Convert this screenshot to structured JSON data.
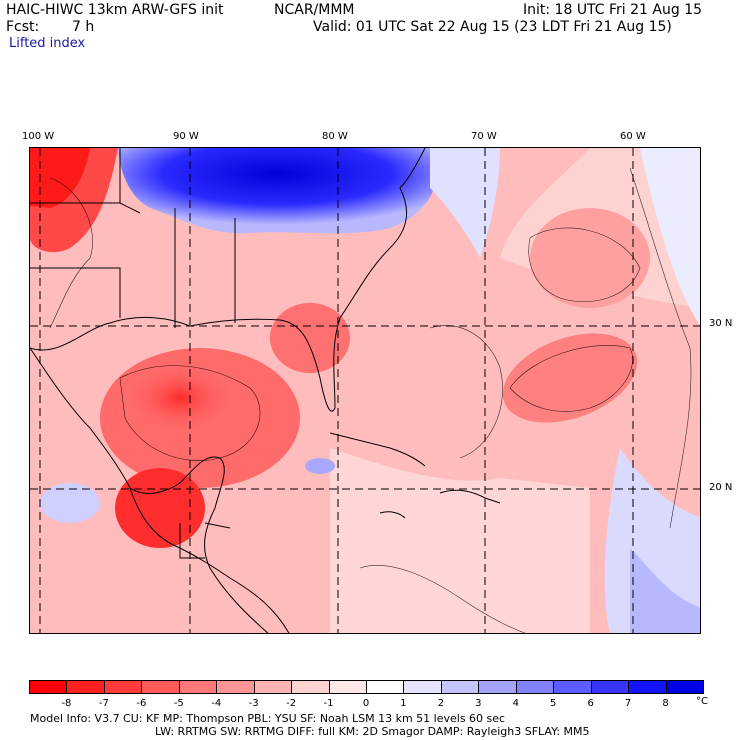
{
  "header": {
    "model_title": "HAIC-HIWC 13km ARW-GFS init",
    "org": "NCAR/MMM",
    "init": "Init: 18 UTC Fri 21 Aug 15",
    "fcst_label": "Fcst:",
    "fcst_value": "7 h",
    "valid": "Valid: 01 UTC Sat 22 Aug 15 (23 LDT Fri 21 Aug 15)",
    "field": "Lifted index"
  },
  "axes": {
    "lon_labels": [
      "100 W",
      "90 W",
      "80 W",
      "70 W",
      "60 W"
    ],
    "lat_labels": [
      "30 N",
      "20 N"
    ]
  },
  "colorbar": {
    "labels": [
      "-8",
      "-7",
      "-6",
      "-5",
      "-4",
      "-3",
      "-2",
      "-1",
      "0",
      "1",
      "2",
      "3",
      "4",
      "5",
      "6",
      "7",
      "8"
    ],
    "unit": "°C",
    "colors": [
      "#ff0000",
      "#ff2020",
      "#ff3c3c",
      "#ff5a5a",
      "#ff7878",
      "#ff9696",
      "#ffb4b4",
      "#ffd2d2",
      "#ffe8e8",
      "#ffffff",
      "#e4e4ff",
      "#c4c4ff",
      "#a4a4ff",
      "#8282ff",
      "#5c5cff",
      "#3636ff",
      "#1414ff",
      "#0000e6"
    ]
  },
  "footer": {
    "line1": "Model Info: V3.7     CU: KF     MP: Thompson     PBL: YSU       SF: Noah LSM     13 km    51 levels   60 sec",
    "line2": "LW: RRTMG     SW: RRTMG   DIFF: full    KM: 2D Smagor DAMP: Rayleigh3  SFLAY: MM5"
  }
}
